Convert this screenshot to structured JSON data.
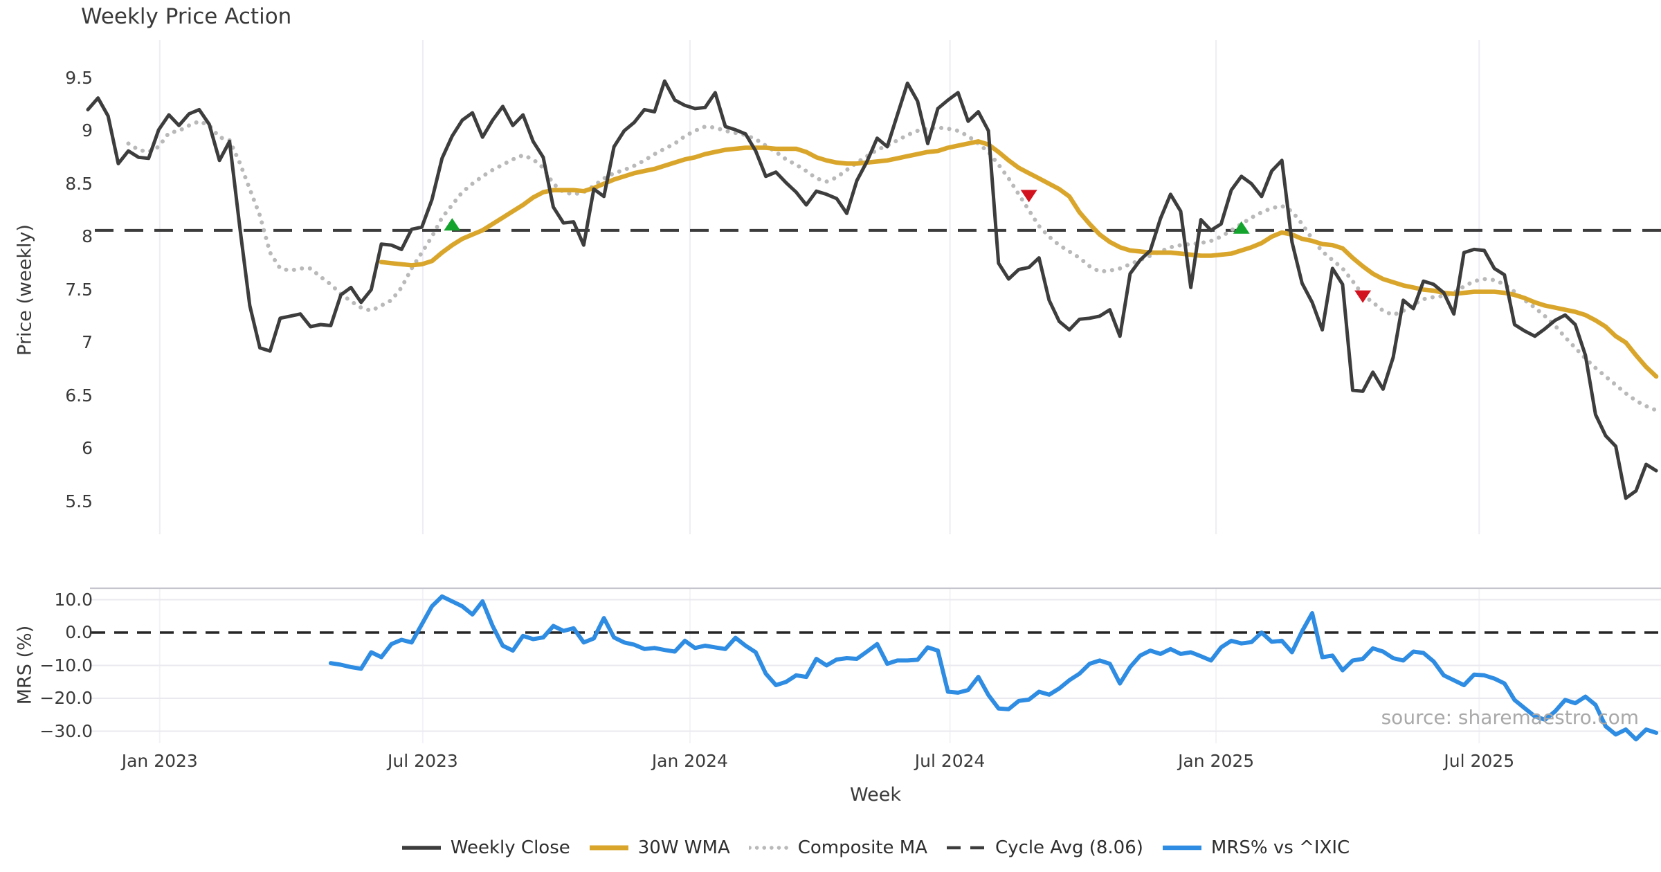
{
  "title": "Weekly Price Action",
  "source_note": "source: sharemaestro.com",
  "colors": {
    "weekly_close": "#3d3d3d",
    "wma_30w": "#d9a62b",
    "composite_ma": "#b9b9b9",
    "cycle_avg": "#3c3c3c",
    "mrs": "#2e8ce2",
    "buy_marker": "#14a32d",
    "sell_marker": "#d2131f",
    "grid_vertical": "#ededf3",
    "grid_horizontal": "#e9e9ef",
    "panel_border": "#c5c5cd",
    "zero_dash": "#262626"
  },
  "legend": [
    {
      "label": "Weekly Close",
      "style": "solid",
      "color": "#3d3d3d",
      "width": 5.5
    },
    {
      "label": "30W WMA",
      "style": "solid",
      "color": "#d9a62b",
      "width": 7
    },
    {
      "label": "Composite MA",
      "style": "dotted",
      "color": "#b9b9b9",
      "width": 5.5
    },
    {
      "label": "Cycle Avg (8.06)",
      "style": "dashed",
      "color": "#3c3c3c",
      "width": 4.5
    },
    {
      "label": "MRS% vs ^IXIC",
      "style": "solid",
      "color": "#2e8ce2",
      "width": 6.5
    }
  ],
  "chart_data": [
    {
      "type": "line",
      "panel": "price",
      "title": "Weekly Price Action",
      "ylabel": "Price (weekly)",
      "xlabel": "Week",
      "x_unit": "week_index_from_first_point",
      "xlim": [
        0,
        155.5
      ],
      "ylim": [
        5.25,
        9.75
      ],
      "grid": "vertical-only",
      "yticks": [
        {
          "v": 9.5,
          "label": "9.5"
        },
        {
          "v": 9,
          "label": "9"
        },
        {
          "v": 8.5,
          "label": "8.5"
        },
        {
          "v": 8,
          "label": "8"
        },
        {
          "v": 7.5,
          "label": "7.5"
        },
        {
          "v": 7,
          "label": "7"
        },
        {
          "v": 6.5,
          "label": "6.5"
        },
        {
          "v": 6,
          "label": "6"
        },
        {
          "v": 5.5,
          "label": "5.5"
        }
      ],
      "xticks": [
        {
          "week": 7.1,
          "label": "Jan 2023"
        },
        {
          "week": 33.1,
          "label": "Jul 2023"
        },
        {
          "week": 59.5,
          "label": "Jan 2024"
        },
        {
          "week": 85.2,
          "label": "Jul 2024"
        },
        {
          "week": 111.5,
          "label": "Jan 2025"
        },
        {
          "week": 137.5,
          "label": "Jul 2025"
        }
      ],
      "cycle_avg": 8.06,
      "series": [
        {
          "name": "Weekly Close",
          "style": "solid",
          "width": 5,
          "start_week": 0,
          "values": [
            9.2,
            9.31,
            9.14,
            8.69,
            8.81,
            8.75,
            8.74,
            9.01,
            9.15,
            9.05,
            9.16,
            9.2,
            9.06,
            8.72,
            8.9,
            8.1,
            7.35,
            6.95,
            6.92,
            7.23,
            7.25,
            7.27,
            7.15,
            7.17,
            7.16,
            7.45,
            7.52,
            7.38,
            7.5,
            7.93,
            7.92,
            7.88,
            8.07,
            8.09,
            8.35,
            8.74,
            8.95,
            9.1,
            9.17,
            8.94,
            9.1,
            9.23,
            9.05,
            9.15,
            8.9,
            8.75,
            8.28,
            8.13,
            8.14,
            7.92,
            8.45,
            8.38,
            8.85,
            9.0,
            9.08,
            9.2,
            9.18,
            9.47,
            9.29,
            9.24,
            9.21,
            9.22,
            9.36,
            9.04,
            9.01,
            8.97,
            8.81,
            8.57,
            8.61,
            8.51,
            8.42,
            8.3,
            8.43,
            8.4,
            8.36,
            8.22,
            8.53,
            8.71,
            8.93,
            8.85,
            9.15,
            9.45,
            9.28,
            8.88,
            9.21,
            9.29,
            9.36,
            9.09,
            9.18,
            9.0,
            7.75,
            7.6,
            7.69,
            7.71,
            7.8,
            7.4,
            7.2,
            7.12,
            7.22,
            7.23,
            7.25,
            7.31,
            7.06,
            7.65,
            7.78,
            7.87,
            8.17,
            8.4,
            8.24,
            7.52,
            8.16,
            8.06,
            8.12,
            8.44,
            8.57,
            8.5,
            8.38,
            8.62,
            8.72,
            7.95,
            7.56,
            7.38,
            7.12,
            7.7,
            7.55,
            6.55,
            6.54,
            6.72,
            6.56,
            6.86,
            7.4,
            7.32,
            7.58,
            7.55,
            7.47,
            7.27,
            7.85,
            7.88,
            7.87,
            7.7,
            7.64,
            7.17,
            7.11,
            7.06,
            7.13,
            7.21,
            7.26,
            7.17,
            6.88,
            6.32,
            6.12,
            6.02,
            5.53,
            5.6,
            5.85,
            5.79
          ]
        },
        {
          "name": "30W WMA",
          "style": "solid",
          "width": 6.5,
          "start_week": 29,
          "values": [
            7.76,
            7.75,
            7.74,
            7.73,
            7.74,
            7.77,
            7.85,
            7.92,
            7.98,
            8.02,
            8.06,
            8.12,
            8.18,
            8.24,
            8.3,
            8.37,
            8.42,
            8.44,
            8.44,
            8.44,
            8.43,
            8.46,
            8.5,
            8.54,
            8.57,
            8.6,
            8.62,
            8.64,
            8.67,
            8.7,
            8.73,
            8.75,
            8.78,
            8.8,
            8.82,
            8.83,
            8.84,
            8.84,
            8.84,
            8.83,
            8.83,
            8.83,
            8.8,
            8.75,
            8.72,
            8.7,
            8.69,
            8.69,
            8.7,
            8.71,
            8.72,
            8.74,
            8.76,
            8.78,
            8.8,
            8.81,
            8.84,
            8.86,
            8.88,
            8.9,
            8.87,
            8.8,
            8.72,
            8.65,
            8.6,
            8.55,
            8.5,
            8.45,
            8.38,
            8.23,
            8.12,
            8.02,
            7.95,
            7.9,
            7.87,
            7.86,
            7.85,
            7.85,
            7.85,
            7.84,
            7.83,
            7.82,
            7.82,
            7.83,
            7.84,
            7.87,
            7.9,
            7.94,
            8.0,
            8.04,
            8.02,
            7.98,
            7.96,
            7.93,
            7.92,
            7.89,
            7.8,
            7.72,
            7.65,
            7.6,
            7.57,
            7.54,
            7.52,
            7.5,
            7.49,
            7.47,
            7.46,
            7.47,
            7.48,
            7.48,
            7.48,
            7.47,
            7.45,
            7.42,
            7.38,
            7.35,
            7.33,
            7.31,
            7.29,
            7.26,
            7.21,
            7.15,
            7.06,
            7.0,
            6.88,
            6.77,
            6.68
          ]
        },
        {
          "name": "Composite MA",
          "style": "dotted",
          "width": 6,
          "start_week": 4,
          "values": [
            8.88,
            8.82,
            8.8,
            8.85,
            8.98,
            9.0,
            9.05,
            9.09,
            9.05,
            8.94,
            8.91,
            8.7,
            8.45,
            8.2,
            7.85,
            7.7,
            7.68,
            7.7,
            7.7,
            7.62,
            7.55,
            7.46,
            7.39,
            7.33,
            7.3,
            7.35,
            7.4,
            7.52,
            7.7,
            7.85,
            8.0,
            8.18,
            8.3,
            8.42,
            8.5,
            8.57,
            8.63,
            8.68,
            8.73,
            8.77,
            8.73,
            8.65,
            8.5,
            8.42,
            8.4,
            8.42,
            8.48,
            8.55,
            8.6,
            8.63,
            8.67,
            8.72,
            8.78,
            8.83,
            8.88,
            8.95,
            9.0,
            9.04,
            9.03,
            9.0,
            8.98,
            8.96,
            8.92,
            8.86,
            8.8,
            8.73,
            8.68,
            8.62,
            8.55,
            8.52,
            8.56,
            8.63,
            8.7,
            8.76,
            8.82,
            8.86,
            8.91,
            8.96,
            9.0,
            9.02,
            9.03,
            9.02,
            9.0,
            8.95,
            8.88,
            8.8,
            8.68,
            8.55,
            8.4,
            8.25,
            8.1,
            8.0,
            7.92,
            7.86,
            7.8,
            7.72,
            7.67,
            7.68,
            7.7,
            7.74,
            7.78,
            7.82,
            7.86,
            7.9,
            7.92,
            7.93,
            7.94,
            7.96,
            8.0,
            8.06,
            8.12,
            8.18,
            8.23,
            8.27,
            8.29,
            8.24,
            8.12,
            7.98,
            7.86,
            7.78,
            7.7,
            7.58,
            7.45,
            7.38,
            7.3,
            7.26,
            7.3,
            7.36,
            7.41,
            7.43,
            7.44,
            7.47,
            7.53,
            7.58,
            7.6,
            7.59,
            7.55,
            7.48,
            7.4,
            7.33,
            7.25,
            7.16,
            7.05,
            6.95,
            6.85,
            6.76,
            6.68,
            6.6,
            6.52,
            6.45,
            6.4,
            6.36
          ]
        }
      ],
      "signals": [
        {
          "type": "buy",
          "week": 36,
          "value": 8.11
        },
        {
          "type": "sell",
          "week": 93,
          "value": 8.39
        },
        {
          "type": "buy",
          "week": 114,
          "value": 8.08
        },
        {
          "type": "sell",
          "week": 126,
          "value": 7.44
        }
      ]
    },
    {
      "type": "line",
      "panel": "mrs",
      "ylabel": "MRS (%)",
      "ylim": [
        -34.5,
        13.5
      ],
      "grid": "horizontal",
      "zero_line": 0.0,
      "yticks": [
        {
          "v": 10,
          "label": "10.0"
        },
        {
          "v": 0,
          "label": "0.0"
        },
        {
          "v": -10,
          "label": "−10.0"
        },
        {
          "v": -20,
          "label": "−20.0"
        },
        {
          "v": -30,
          "label": "−30.0"
        }
      ],
      "series": [
        {
          "name": "MRS% vs ^IXIC",
          "style": "solid",
          "width": 6,
          "start_week": 24,
          "values": [
            -9.3,
            -9.8,
            -10.5,
            -11.0,
            -6.0,
            -7.5,
            -3.5,
            -2.2,
            -3.0,
            2.5,
            8.0,
            11.0,
            9.5,
            8.0,
            5.5,
            9.5,
            2.0,
            -4.0,
            -5.5,
            -1.0,
            -2.0,
            -1.5,
            2.0,
            0.5,
            1.3,
            -3.0,
            -1.8,
            4.4,
            -1.5,
            -3.0,
            -3.7,
            -5.0,
            -4.7,
            -5.3,
            -5.8,
            -2.5,
            -4.7,
            -4.0,
            -4.5,
            -5.0,
            -1.6,
            -4.0,
            -6.0,
            -12.5,
            -16.0,
            -15.0,
            -13.0,
            -13.5,
            -8.0,
            -10.0,
            -8.2,
            -7.8,
            -8.0,
            -5.8,
            -3.5,
            -9.5,
            -8.5,
            -8.5,
            -8.3,
            -4.5,
            -5.5,
            -18.0,
            -18.3,
            -17.5,
            -13.5,
            -19.0,
            -23.1,
            -23.3,
            -20.8,
            -20.4,
            -18.0,
            -18.9,
            -17.0,
            -14.5,
            -12.5,
            -9.5,
            -8.5,
            -9.5,
            -15.5,
            -10.5,
            -7.0,
            -5.5,
            -6.5,
            -5.0,
            -6.5,
            -6.0,
            -7.2,
            -8.5,
            -4.5,
            -2.5,
            -3.3,
            -2.9,
            0.0,
            -2.8,
            -2.5,
            -6.0,
            0.4,
            5.9,
            -7.5,
            -7.0,
            -11.5,
            -8.5,
            -8.0,
            -4.8,
            -5.8,
            -7.8,
            -8.5,
            -5.8,
            -6.2,
            -8.8,
            -13.0,
            -14.5,
            -16.0,
            -12.8,
            -13.0,
            -14.0,
            -15.5,
            -20.5,
            -23.0,
            -25.5,
            -26.5,
            -24.0,
            -20.5,
            -21.5,
            -19.5,
            -22.0,
            -28.5,
            -31.0,
            -29.5,
            -32.5,
            -29.5,
            -30.5
          ]
        }
      ]
    }
  ]
}
